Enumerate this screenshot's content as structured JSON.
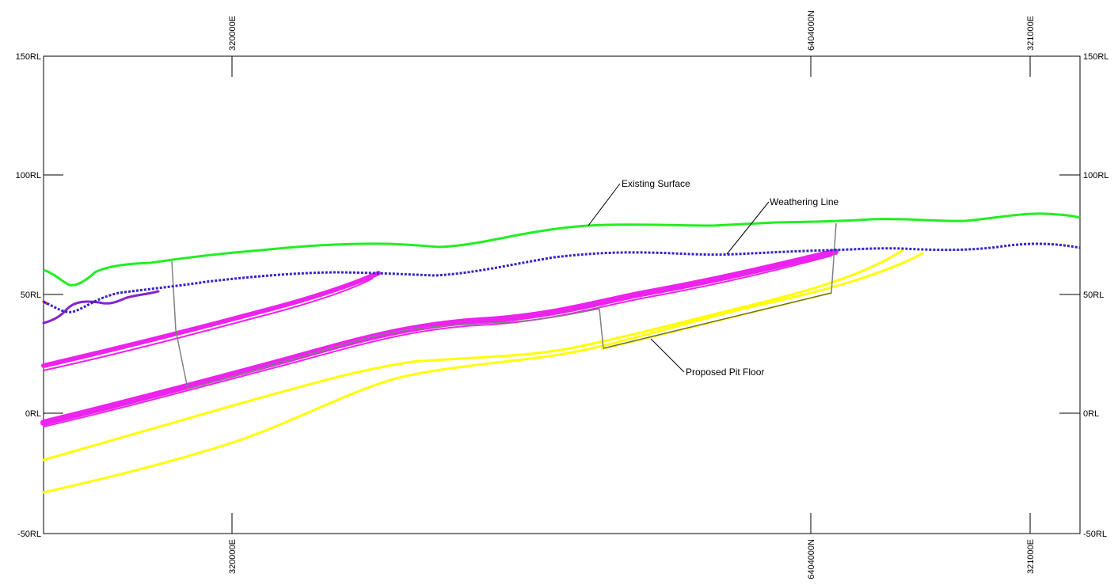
{
  "frame": {
    "rl_labels": [
      "150RL",
      "100RL",
      "50RL",
      "0RL",
      "-50RL"
    ],
    "rl_values": [
      150,
      100,
      50,
      0,
      -50
    ],
    "grid_labels": [
      "320000E",
      "6404000N",
      "321000E"
    ]
  },
  "annotations": {
    "existing_surface": "Existing Surface",
    "weathering_line": "Weathering Line",
    "proposed_pit_floor": "Proposed Pit Floor"
  },
  "colors": {
    "existing_surface": "#22ee22",
    "weathering_line": "#3322cc",
    "seam_pink": "#ee22ee",
    "seam_purple": "#8822cc",
    "seam_yellow": "#ffff00",
    "pit_outline": "#808080",
    "frame": "#000000"
  }
}
